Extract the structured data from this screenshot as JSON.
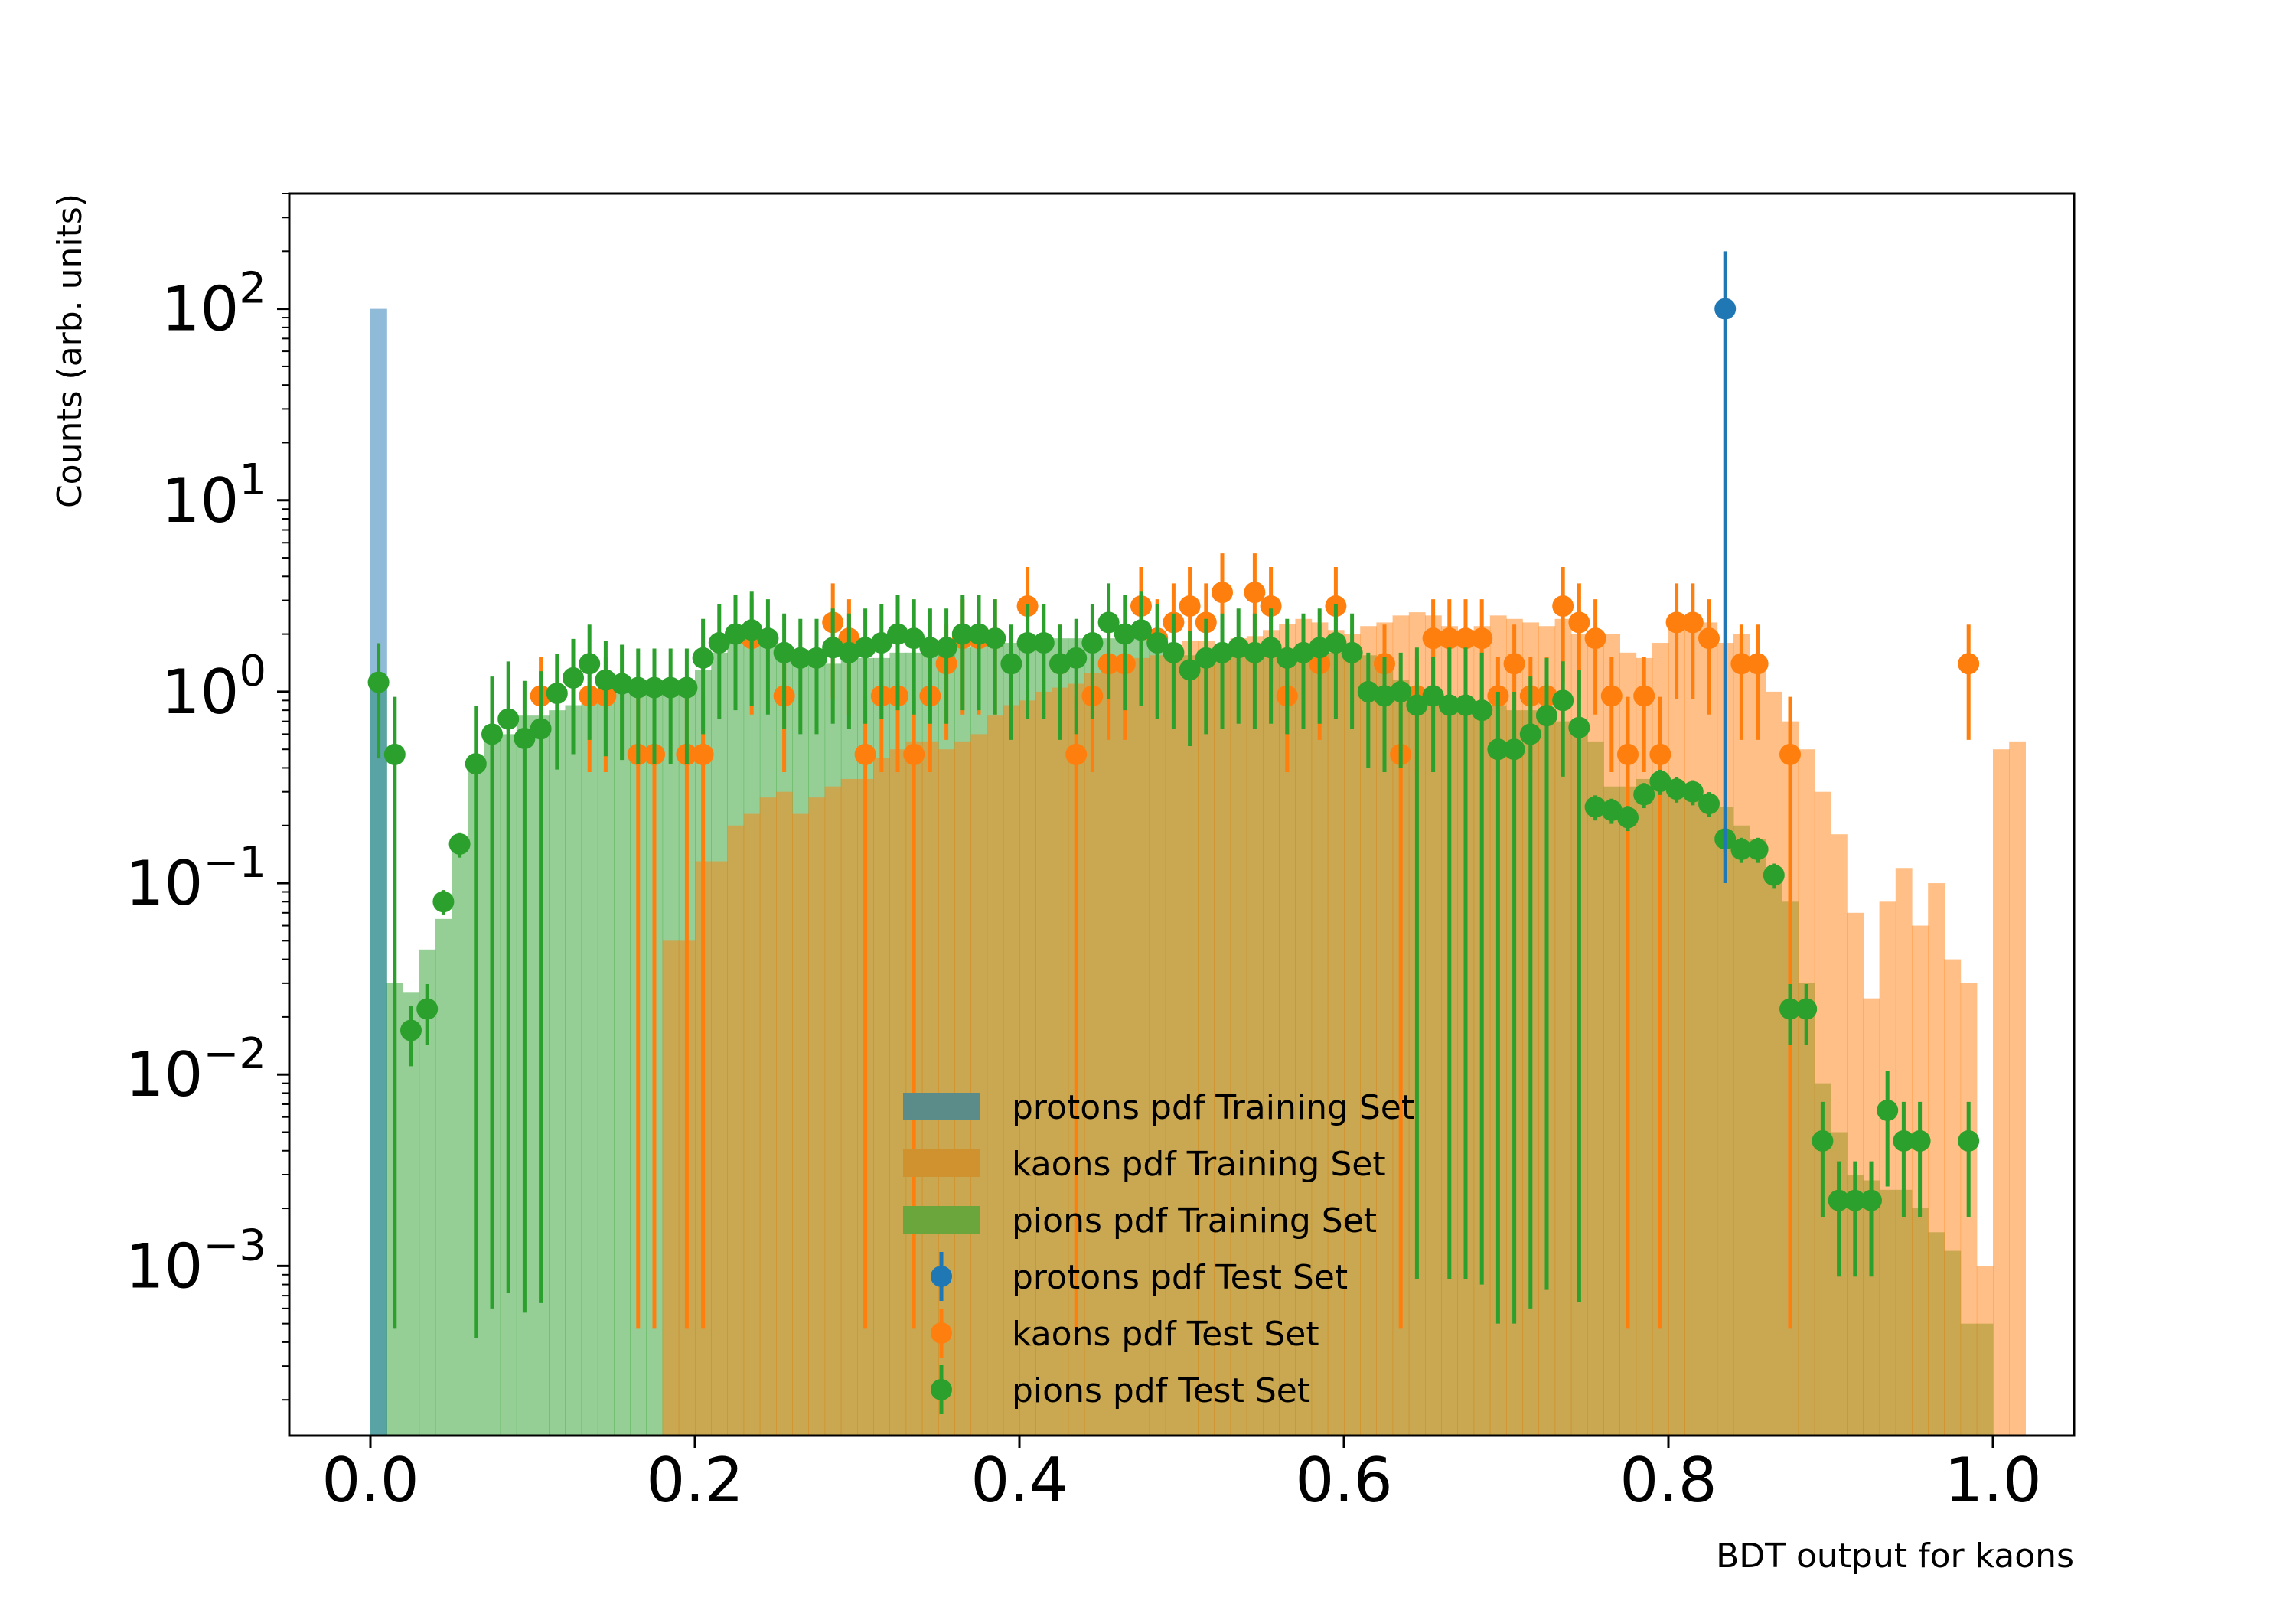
{
  "chart_data": {
    "type": "bar",
    "title": "",
    "xlabel": "BDT output for kaons",
    "ylabel": "Counts (arb. units)",
    "xlim": [
      -0.05,
      1.05
    ],
    "ylim": [
      0.00013,
      400
    ],
    "yscale": "log",
    "grid": false,
    "legend_position": "lower-center",
    "x_ticks": [
      {
        "value": 0.0,
        "label": "0.0"
      },
      {
        "value": 0.2,
        "label": "0.2"
      },
      {
        "value": 0.4,
        "label": "0.4"
      },
      {
        "value": 0.6,
        "label": "0.6"
      },
      {
        "value": 0.8,
        "label": "0.8"
      },
      {
        "value": 1.0,
        "label": "1.0"
      }
    ],
    "y_ticks": [
      {
        "value": 100,
        "base": "10",
        "exp": "2"
      },
      {
        "value": 10,
        "base": "10",
        "exp": "1"
      },
      {
        "value": 1,
        "base": "10",
        "exp": "0"
      },
      {
        "value": 0.1,
        "base": "10",
        "exp": "−1"
      },
      {
        "value": 0.01,
        "base": "10",
        "exp": "−2"
      },
      {
        "value": 0.001,
        "base": "10",
        "exp": "−3"
      }
    ],
    "bin_width": 0.01,
    "histograms": [
      {
        "name": "pions pdf Training Set",
        "color": "#2ca02c",
        "legend_color": "#6aa63c",
        "values": [
          1.1,
          0.03,
          0.027,
          0.045,
          0.065,
          0.16,
          0.4,
          0.55,
          0.6,
          0.75,
          0.75,
          0.8,
          0.85,
          1.0,
          1.05,
          1.05,
          1.05,
          1.05,
          1.05,
          1.05,
          1.3,
          1.6,
          1.95,
          1.95,
          1.8,
          1.7,
          1.5,
          1.5,
          1.4,
          1.5,
          1.5,
          1.5,
          1.6,
          1.6,
          1.6,
          1.6,
          1.7,
          1.8,
          1.8,
          1.8,
          1.8,
          1.8,
          1.9,
          1.9,
          1.9,
          1.9,
          1.9,
          1.9,
          1.8,
          1.75,
          1.55,
          1.6,
          1.6,
          1.65,
          1.6,
          1.55,
          1.5,
          1.6,
          1.6,
          1.6,
          1.6,
          1.55,
          1.3,
          1.15,
          1.0,
          0.95,
          0.9,
          0.85,
          0.85,
          0.85,
          0.8,
          0.8,
          0.75,
          0.7,
          0.65,
          0.55,
          0.32,
          0.32,
          0.35,
          0.35,
          0.32,
          0.3,
          0.28,
          0.25,
          0.2,
          0.17,
          0.12,
          0.08,
          0.03,
          0.009,
          0.005,
          0.003,
          0.0028,
          0.0025,
          0.0025,
          0.002,
          0.0015,
          0.0012,
          0.0005,
          0.0005,
          0
        ]
      },
      {
        "name": "kaons pdf Training Set",
        "color": "#ff7f0e",
        "legend_color": "#cf922f",
        "values": [
          0,
          0,
          0,
          0,
          0,
          0,
          0,
          0,
          0,
          0,
          0,
          0,
          0,
          0,
          0,
          0,
          0,
          0,
          0.05,
          0.05,
          0.13,
          0.13,
          0.2,
          0.23,
          0.28,
          0.3,
          0.23,
          0.28,
          0.32,
          0.35,
          0.35,
          0.45,
          0.5,
          0.55,
          0.55,
          0.5,
          0.55,
          0.6,
          0.75,
          0.85,
          0.9,
          1.0,
          1.05,
          1.1,
          1.25,
          1.3,
          1.4,
          1.5,
          1.55,
          1.75,
          1.85,
          1.85,
          1.65,
          1.9,
          1.95,
          2.1,
          2.25,
          2.4,
          2.3,
          2.1,
          2.0,
          2.2,
          2.3,
          2.5,
          2.6,
          2.5,
          2.2,
          2.1,
          2.2,
          2.5,
          2.4,
          2.3,
          2.2,
          2.4,
          2.0,
          1.95,
          2.0,
          1.6,
          1.5,
          1.8,
          2.2,
          2.3,
          2.3,
          1.8,
          2.0,
          1.5,
          1.0,
          0.7,
          0.5,
          0.3,
          0.18,
          0.07,
          0.025,
          0.08,
          0.12,
          0.06,
          0.1,
          0.04,
          0.03,
          0.001,
          0.5,
          0.55
        ]
      },
      {
        "name": "protons pdf Training Set",
        "color": "#1f77b4",
        "legend_color": "#5b8c8a",
        "values": [
          100,
          0,
          0,
          0,
          0,
          0,
          0,
          0,
          0,
          0,
          0,
          0,
          0,
          0,
          0,
          0,
          0,
          0,
          0,
          0,
          0,
          0,
          0,
          0,
          0,
          0,
          0,
          0,
          0,
          0,
          0,
          0,
          0,
          0,
          0,
          0,
          0,
          0,
          0,
          0,
          0,
          0,
          0,
          0,
          0,
          0,
          0,
          0,
          0,
          0,
          0,
          0,
          0,
          0,
          0,
          0,
          0,
          0,
          0,
          0,
          0,
          0,
          0,
          0,
          0,
          0,
          0,
          0,
          0,
          0,
          0,
          0,
          0,
          0,
          0,
          0,
          0,
          0,
          0,
          0,
          0,
          0,
          0,
          0,
          0,
          0,
          0,
          0,
          0,
          0,
          0,
          0,
          0,
          0,
          0,
          0,
          0,
          0,
          0,
          0
        ]
      }
    ],
    "points": [
      {
        "name": "kaons pdf Test Set",
        "color": "#ff7f0e",
        "x": [
          0.105,
          0.135,
          0.145,
          0.165,
          0.175,
          0.195,
          0.205,
          0.235,
          0.255,
          0.285,
          0.295,
          0.305,
          0.315,
          0.325,
          0.335,
          0.345,
          0.355,
          0.365,
          0.375,
          0.385,
          0.405,
          0.425,
          0.435,
          0.445,
          0.455,
          0.465,
          0.475,
          0.485,
          0.495,
          0.505,
          0.515,
          0.525,
          0.545,
          0.555,
          0.565,
          0.585,
          0.595,
          0.625,
          0.635,
          0.645,
          0.655,
          0.665,
          0.675,
          0.685,
          0.695,
          0.705,
          0.715,
          0.725,
          0.735,
          0.745,
          0.755,
          0.765,
          0.775,
          0.785,
          0.795,
          0.805,
          0.815,
          0.825,
          0.845,
          0.855,
          0.875,
          0.985
        ],
        "y": [
          0.95,
          0.95,
          0.95,
          0.47,
          0.47,
          0.47,
          0.47,
          1.9,
          0.95,
          2.3,
          1.9,
          0.47,
          0.95,
          0.95,
          0.47,
          0.95,
          1.4,
          1.9,
          1.9,
          1.9,
          2.8,
          1.4,
          0.47,
          0.95,
          1.4,
          1.4,
          2.8,
          1.9,
          2.3,
          2.8,
          2.3,
          3.3,
          3.3,
          2.8,
          0.95,
          1.4,
          2.8,
          1.4,
          0.47,
          0.95,
          1.9,
          1.9,
          1.9,
          1.9,
          0.95,
          1.4,
          0.95,
          0.95,
          2.8,
          2.3,
          1.9,
          0.95,
          0.47,
          0.95,
          0.47,
          2.3,
          2.3,
          1.9,
          1.4,
          1.4,
          0.47,
          1.4
        ]
      },
      {
        "name": "pions pdf Test Set",
        "color": "#2ca02c",
        "x": [
          0.005,
          0.015,
          0.025,
          0.035,
          0.045,
          0.055,
          0.065,
          0.075,
          0.085,
          0.095,
          0.105,
          0.115,
          0.125,
          0.135,
          0.145,
          0.155,
          0.165,
          0.175,
          0.185,
          0.195,
          0.205,
          0.215,
          0.225,
          0.235,
          0.245,
          0.255,
          0.265,
          0.275,
          0.285,
          0.295,
          0.305,
          0.315,
          0.325,
          0.335,
          0.345,
          0.355,
          0.365,
          0.375,
          0.385,
          0.395,
          0.405,
          0.415,
          0.425,
          0.435,
          0.445,
          0.455,
          0.465,
          0.475,
          0.485,
          0.495,
          0.505,
          0.515,
          0.525,
          0.535,
          0.545,
          0.555,
          0.565,
          0.575,
          0.585,
          0.595,
          0.605,
          0.615,
          0.625,
          0.635,
          0.645,
          0.655,
          0.665,
          0.675,
          0.685,
          0.695,
          0.705,
          0.715,
          0.725,
          0.735,
          0.745,
          0.755,
          0.765,
          0.775,
          0.785,
          0.795,
          0.805,
          0.815,
          0.825,
          0.835,
          0.845,
          0.855,
          0.865,
          0.875,
          0.885,
          0.895,
          0.905,
          0.915,
          0.925,
          0.935,
          0.945,
          0.955,
          0.985
        ],
        "y": [
          1.12,
          0.47,
          0.017,
          0.022,
          0.08,
          0.16,
          0.42,
          0.6,
          0.72,
          0.57,
          0.64,
          0.98,
          1.18,
          1.4,
          1.15,
          1.1,
          1.05,
          1.05,
          1.05,
          1.05,
          1.5,
          1.8,
          2.0,
          2.1,
          1.9,
          1.6,
          1.5,
          1.5,
          1.7,
          1.6,
          1.7,
          1.8,
          2.0,
          1.9,
          1.7,
          1.7,
          2.0,
          2.0,
          1.9,
          1.4,
          1.8,
          1.8,
          1.4,
          1.5,
          1.8,
          2.3,
          2.0,
          2.1,
          1.8,
          1.6,
          1.3,
          1.5,
          1.6,
          1.7,
          1.6,
          1.7,
          1.5,
          1.6,
          1.7,
          1.8,
          1.6,
          1.0,
          0.95,
          1.0,
          0.85,
          0.95,
          0.85,
          0.85,
          0.8,
          0.5,
          0.5,
          0.6,
          0.75,
          0.9,
          0.65,
          0.25,
          0.24,
          0.22,
          0.29,
          0.34,
          0.31,
          0.3,
          0.26,
          0.17,
          0.15,
          0.15,
          0.11,
          0.022,
          0.022,
          0.0045,
          0.0022,
          0.0022,
          0.0022,
          0.0065,
          0.0045,
          0.0045,
          0.0045
        ]
      },
      {
        "name": "protons pdf Test Set",
        "color": "#1f77b4",
        "x": [
          0.835
        ],
        "y": [
          100
        ]
      }
    ],
    "legend": [
      {
        "label": "protons pdf Training Set",
        "kind": "patch",
        "color": "#5b8c8a"
      },
      {
        "label": "kaons pdf Training Set",
        "kind": "patch",
        "color": "#cf922f"
      },
      {
        "label": "pions pdf Training Set",
        "kind": "patch",
        "color": "#6aa63c"
      },
      {
        "label": "protons pdf Test Set",
        "kind": "point",
        "color": "#1f77b4"
      },
      {
        "label": "kaons pdf Test Set",
        "kind": "point",
        "color": "#ff7f0e"
      },
      {
        "label": "pions pdf Test Set",
        "kind": "point",
        "color": "#2ca02c"
      }
    ]
  }
}
